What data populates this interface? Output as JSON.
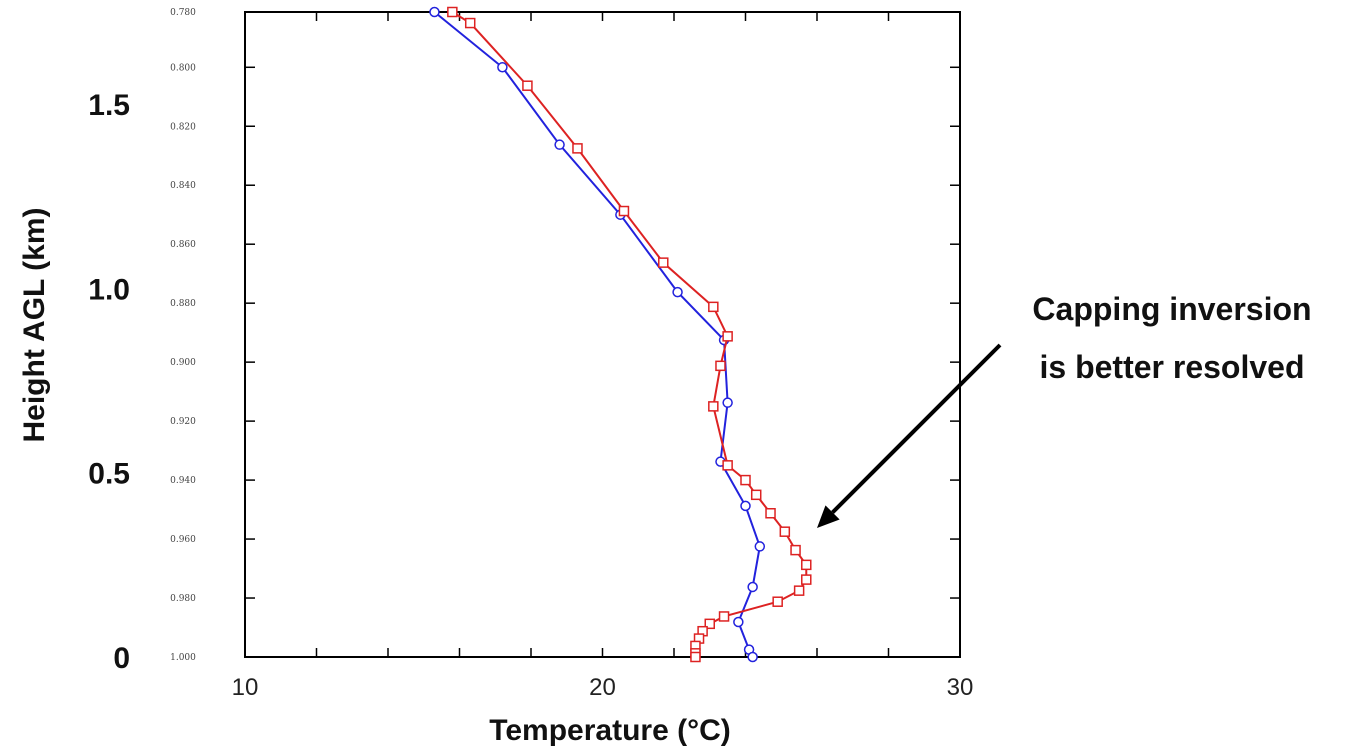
{
  "chart_data": {
    "type": "line",
    "xlabel": "Temperature (°C)",
    "ylabel": "Height AGL (km)",
    "xlim": [
      10,
      30
    ],
    "ylim": [
      0,
      1.75
    ],
    "x_ticks": [
      "10",
      "20",
      "30"
    ],
    "y_ticks": [
      "0",
      "0.5",
      "1.0",
      "1.5"
    ],
    "sigma_ticks": [
      {
        "label": "0.780",
        "height_km": 1.75
      },
      {
        "label": "0.800",
        "height_km": 1.6
      },
      {
        "label": "0.820",
        "height_km": 1.44
      },
      {
        "label": "0.840",
        "height_km": 1.28
      },
      {
        "label": "0.860",
        "height_km": 1.12
      },
      {
        "label": "0.880",
        "height_km": 0.96
      },
      {
        "label": "0.900",
        "height_km": 0.8
      },
      {
        "label": "0.920",
        "height_km": 0.64
      },
      {
        "label": "0.940",
        "height_km": 0.48
      },
      {
        "label": "0.960",
        "height_km": 0.32
      },
      {
        "label": "0.980",
        "height_km": 0.16
      },
      {
        "label": "1.000",
        "height_km": 0.0
      }
    ],
    "series": [
      {
        "color": "#2222dd",
        "marker": "circle",
        "points": [
          {
            "x": 15.3,
            "y": 1.75
          },
          {
            "x": 17.2,
            "y": 1.6
          },
          {
            "x": 18.8,
            "y": 1.39
          },
          {
            "x": 20.5,
            "y": 1.2
          },
          {
            "x": 22.1,
            "y": 0.99
          },
          {
            "x": 23.4,
            "y": 0.86
          },
          {
            "x": 23.5,
            "y": 0.69
          },
          {
            "x": 23.3,
            "y": 0.53
          },
          {
            "x": 24.0,
            "y": 0.41
          },
          {
            "x": 24.4,
            "y": 0.3
          },
          {
            "x": 24.2,
            "y": 0.19
          },
          {
            "x": 23.8,
            "y": 0.095
          },
          {
            "x": 24.1,
            "y": 0.02
          },
          {
            "x": 24.2,
            "y": 0.0
          }
        ]
      },
      {
        "color": "#dd2222",
        "marker": "square",
        "points": [
          {
            "x": 15.8,
            "y": 1.75
          },
          {
            "x": 16.3,
            "y": 1.72
          },
          {
            "x": 17.9,
            "y": 1.55
          },
          {
            "x": 19.3,
            "y": 1.38
          },
          {
            "x": 20.6,
            "y": 1.21
          },
          {
            "x": 21.7,
            "y": 1.07
          },
          {
            "x": 23.1,
            "y": 0.95
          },
          {
            "x": 23.5,
            "y": 0.87
          },
          {
            "x": 23.3,
            "y": 0.79
          },
          {
            "x": 23.1,
            "y": 0.68
          },
          {
            "x": 23.5,
            "y": 0.52
          },
          {
            "x": 24.0,
            "y": 0.48
          },
          {
            "x": 24.3,
            "y": 0.44
          },
          {
            "x": 24.7,
            "y": 0.39
          },
          {
            "x": 25.1,
            "y": 0.34
          },
          {
            "x": 25.4,
            "y": 0.29
          },
          {
            "x": 25.7,
            "y": 0.25
          },
          {
            "x": 25.7,
            "y": 0.21
          },
          {
            "x": 25.5,
            "y": 0.18
          },
          {
            "x": 24.9,
            "y": 0.15
          },
          {
            "x": 23.4,
            "y": 0.11
          },
          {
            "x": 23.0,
            "y": 0.09
          },
          {
            "x": 22.8,
            "y": 0.07
          },
          {
            "x": 22.7,
            "y": 0.05
          },
          {
            "x": 22.6,
            "y": 0.03
          },
          {
            "x": 22.6,
            "y": 0.01
          },
          {
            "x": 22.6,
            "y": 0.0
          }
        ]
      }
    ],
    "annotation": {
      "lines": [
        "Capping inversion",
        "is better resolved"
      ],
      "arrow_target": {
        "x": 26.0,
        "y": 0.35
      }
    }
  }
}
